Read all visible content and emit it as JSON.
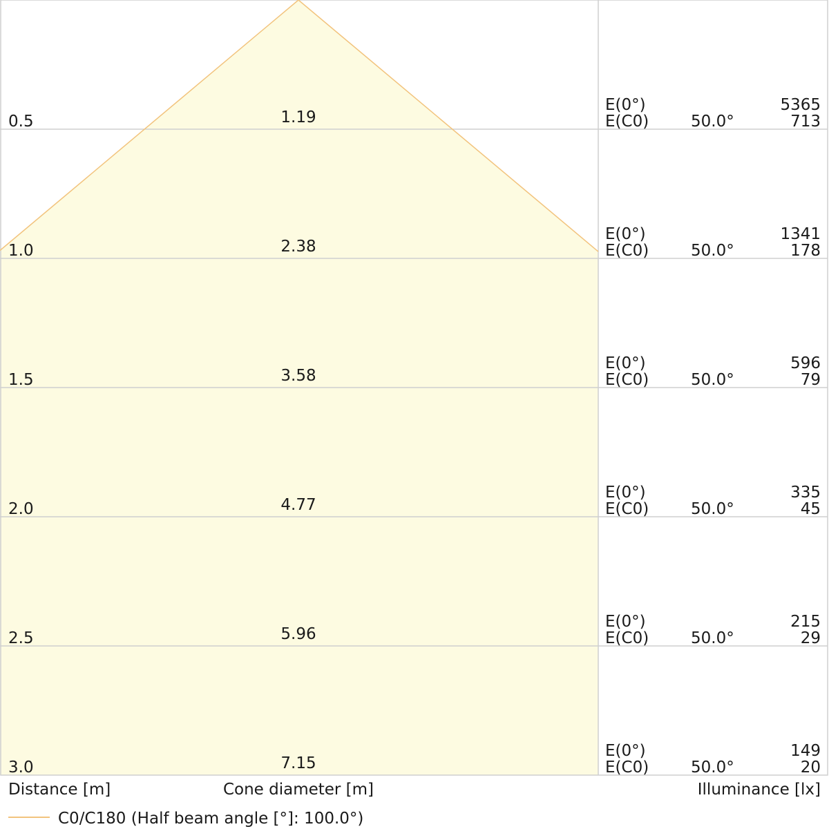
{
  "chart_data": {
    "type": "area",
    "distance_axis_label": "Distance [m]",
    "cone_axis_label": "Cone diameter [m]",
    "illuminance_axis_label": "Illuminance [lx]",
    "legend": "C0/C180 (Half beam angle [°]: 100.0°)",
    "half_beam_angle_deg": 100.0,
    "ylim": [
      0,
      3.0
    ],
    "rows": [
      {
        "distance": "0.5",
        "cone": "1.19",
        "e0_label": "E(0°)",
        "ec0_label": "E(C0)",
        "angle": "50.0°",
        "e0": "5365",
        "ec0": "713"
      },
      {
        "distance": "1.0",
        "cone": "2.38",
        "e0_label": "E(0°)",
        "ec0_label": "E(C0)",
        "angle": "50.0°",
        "e0": "1341",
        "ec0": "178"
      },
      {
        "distance": "1.5",
        "cone": "3.58",
        "e0_label": "E(0°)",
        "ec0_label": "E(C0)",
        "angle": "50.0°",
        "e0": "596",
        "ec0": "79"
      },
      {
        "distance": "2.0",
        "cone": "4.77",
        "e0_label": "E(0°)",
        "ec0_label": "E(C0)",
        "angle": "50.0°",
        "e0": "335",
        "ec0": "45"
      },
      {
        "distance": "2.5",
        "cone": "5.96",
        "e0_label": "E(0°)",
        "ec0_label": "E(C0)",
        "angle": "50.0°",
        "e0": "215",
        "ec0": "29"
      },
      {
        "distance": "3.0",
        "cone": "7.15",
        "e0_label": "E(0°)",
        "ec0_label": "E(C0)",
        "angle": "50.0°",
        "e0": "149",
        "ec0": "20"
      }
    ],
    "colors": {
      "fill": "#fdfbe1",
      "cone_line": "#f2c37d",
      "grid": "#cfcfcf",
      "text": "#1a1a1a"
    }
  }
}
